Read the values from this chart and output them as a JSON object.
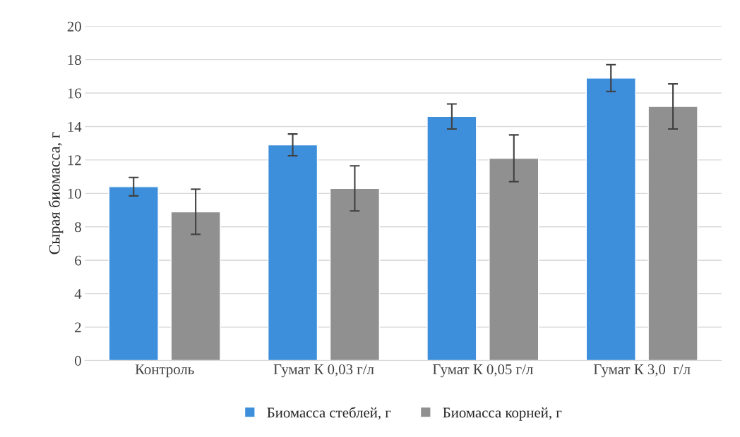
{
  "chart_data": {
    "type": "bar",
    "ylabel": "Сырая биомасса, г",
    "categories": [
      "Контроль",
      "Гумат К 0,03 г/л",
      "Гумат К 0,05 г/л",
      "Гумат К 3,0  г/л"
    ],
    "series": [
      {
        "name": "Биомасса стеблей, г",
        "color": "#3d8fdc",
        "values": [
          10.4,
          12.9,
          14.6,
          16.9
        ],
        "errors": [
          0.55,
          0.65,
          0.75,
          0.8
        ]
      },
      {
        "name": "Биомасса корней, г",
        "color": "#909090",
        "values": [
          8.9,
          10.3,
          12.1,
          15.2
        ],
        "errors": [
          1.35,
          1.35,
          1.4,
          1.35
        ]
      }
    ],
    "ylim": [
      0,
      20
    ],
    "yticks": [
      0,
      2,
      4,
      6,
      8,
      10,
      12,
      14,
      16,
      18,
      20
    ],
    "grid": "y",
    "legend": "bottom"
  }
}
